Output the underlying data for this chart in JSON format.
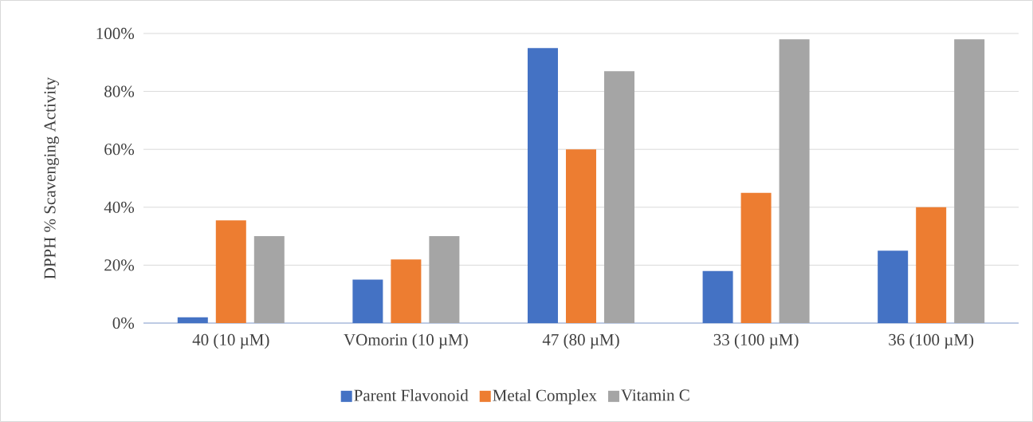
{
  "chart_data": {
    "type": "bar",
    "ylabel": "DPPH % Scavenging Activity",
    "categories": [
      "40 (10 µM)",
      "VOmorin (10 µM)",
      "47 (80 µM)",
      "33 (100 µM)",
      "36 (100 µM)"
    ],
    "series": [
      {
        "name": "Parent Flavonoid",
        "color": "#4472c4",
        "values": [
          2,
          15,
          95,
          18,
          25
        ]
      },
      {
        "name": "Metal Complex",
        "color": "#ed7d31",
        "values": [
          35.5,
          22,
          60,
          45,
          40
        ]
      },
      {
        "name": "Vitamin C",
        "color": "#a5a5a5",
        "values": [
          30,
          30,
          87,
          98,
          98
        ]
      }
    ],
    "ylim": [
      0,
      100
    ],
    "yticks": [
      {
        "value": 0,
        "label": "0%"
      },
      {
        "value": 20,
        "label": "20%"
      },
      {
        "value": 40,
        "label": "40%"
      },
      {
        "value": 60,
        "label": "60%"
      },
      {
        "value": 80,
        "label": "80%"
      },
      {
        "value": 100,
        "label": "100%"
      }
    ],
    "grid": "y",
    "legend": "bottom"
  }
}
